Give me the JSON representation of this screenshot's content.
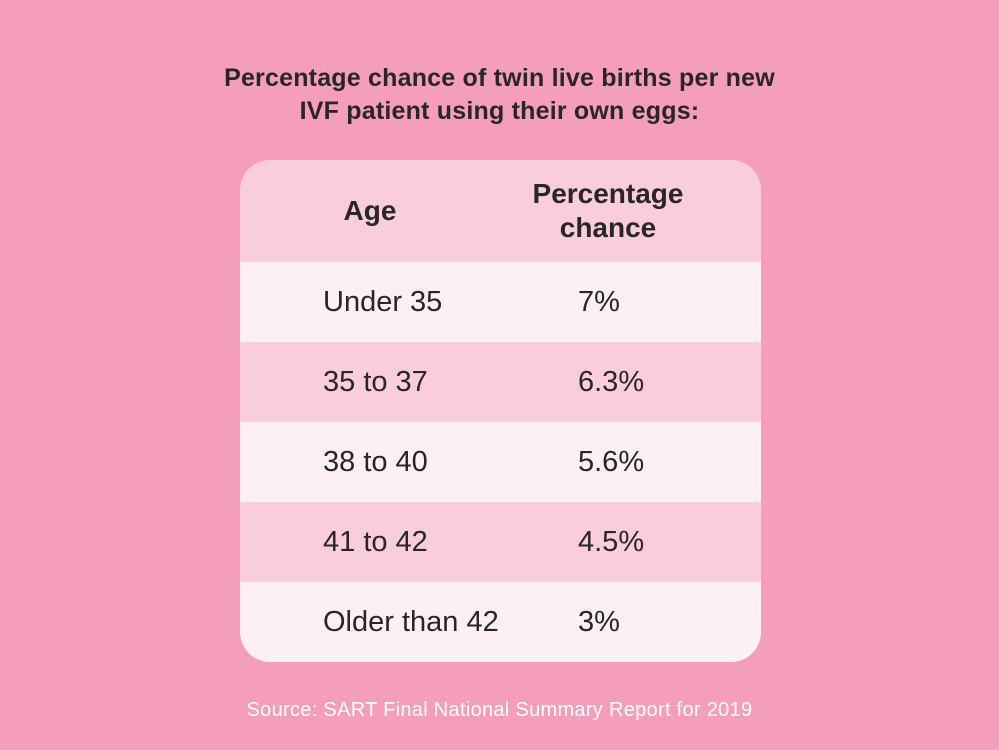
{
  "title": {
    "line1": "Percentage chance of twin live births per new",
    "line2": "IVF patient using their own eggs:"
  },
  "table": {
    "header": {
      "age": "Age",
      "chance": "Percentage chance"
    },
    "rows": [
      {
        "age": "Under 35",
        "chance": "7%"
      },
      {
        "age": "35 to 37",
        "chance": "6.3%"
      },
      {
        "age": "38 to 40",
        "chance": "5.6%"
      },
      {
        "age": "41 to 42",
        "chance": "4.5%"
      },
      {
        "age": "Older than 42",
        "chance": "3%"
      }
    ]
  },
  "source": "Source: SART Final National Summary Report for 2019",
  "colors": {
    "background": "#F49EBB",
    "row_pink": "#FACDDC",
    "row_light": "#FDF0F4",
    "header_background": "#FACDDC",
    "text": "#2A2527",
    "source_text": "#FFFFFF"
  },
  "chart_data": {
    "type": "table",
    "title": "Percentage chance of twin live births per new IVF patient using their own eggs:",
    "columns": [
      "Age",
      "Percentage chance"
    ],
    "categories": [
      "Under 35",
      "35 to 37",
      "38 to 40",
      "41 to 42",
      "Older than 42"
    ],
    "values": [
      7,
      6.3,
      5.6,
      4.5,
      3
    ],
    "unit": "%",
    "source": "Source: SART Final National Summary Report for 2019"
  }
}
